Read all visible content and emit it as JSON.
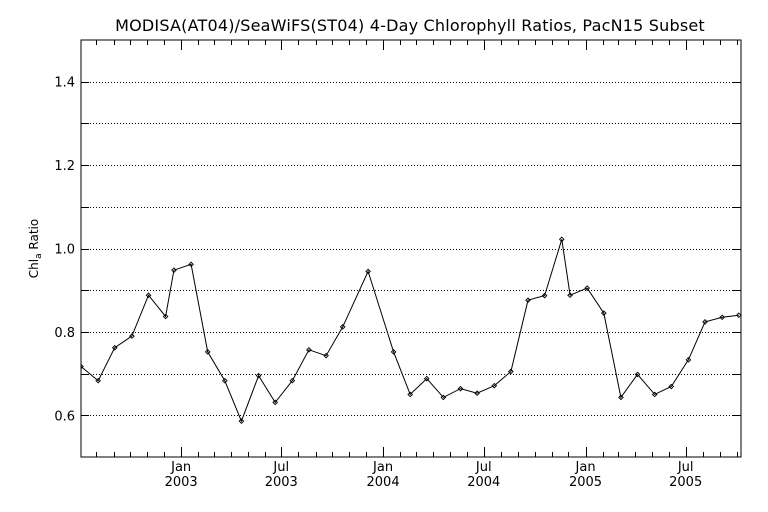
{
  "chart_data": {
    "type": "line",
    "title": "MODISA(AT04)/SeaWiFS(ST04) 4-Day Chlorophyll Ratios, PacN15 Subset",
    "ylabel_main": "Chl",
    "ylabel_sub": "a",
    "ylabel_rest": " Ratio",
    "ylim": [
      0.5,
      1.5
    ],
    "y_ticks": [
      0.6,
      0.8,
      1.0,
      1.2,
      1.4
    ],
    "y_tick_labels": [
      "0.6",
      "0.8",
      "1.0",
      "1.2",
      "1.4"
    ],
    "y_gridlines": [
      0.6,
      0.7,
      0.8,
      0.9,
      1.0,
      1.1,
      1.2,
      1.3,
      1.4
    ],
    "grid": "dotted horizontal",
    "x_start": "2002-07-04",
    "x_end": "2005-10-09",
    "x_ticks": [
      {
        "date": "2003-01-01",
        "month": "Jan",
        "year": "2003"
      },
      {
        "date": "2003-07-01",
        "month": "Jul",
        "year": "2003"
      },
      {
        "date": "2004-01-01",
        "month": "Jan",
        "year": "2004"
      },
      {
        "date": "2004-07-01",
        "month": "Jul",
        "year": "2004"
      },
      {
        "date": "2005-01-01",
        "month": "Jan",
        "year": "2005"
      },
      {
        "date": "2005-07-01",
        "month": "Jul",
        "year": "2005"
      }
    ],
    "series": [
      {
        "points": [
          {
            "x": "2002-07-04",
            "y": 0.717
          },
          {
            "x": "2002-08-04",
            "y": 0.683
          },
          {
            "x": "2002-09-03",
            "y": 0.762
          },
          {
            "x": "2002-10-04",
            "y": 0.79
          },
          {
            "x": "2002-11-03",
            "y": 0.888
          },
          {
            "x": "2002-12-04",
            "y": 0.837
          },
          {
            "x": "2002-12-19",
            "y": 0.948
          },
          {
            "x": "2003-01-19",
            "y": 0.962
          },
          {
            "x": "2003-02-18",
            "y": 0.752
          },
          {
            "x": "2003-03-21",
            "y": 0.683
          },
          {
            "x": "2003-04-20",
            "y": 0.586
          },
          {
            "x": "2003-05-21",
            "y": 0.695
          },
          {
            "x": "2003-06-20",
            "y": 0.631
          },
          {
            "x": "2003-07-21",
            "y": 0.683
          },
          {
            "x": "2003-08-20",
            "y": 0.757
          },
          {
            "x": "2003-09-20",
            "y": 0.743
          },
          {
            "x": "2003-10-20",
            "y": 0.812
          },
          {
            "x": "2003-12-05",
            "y": 0.945
          },
          {
            "x": "2004-01-20",
            "y": 0.752
          },
          {
            "x": "2004-02-19",
            "y": 0.65
          },
          {
            "x": "2004-03-20",
            "y": 0.688
          },
          {
            "x": "2004-04-19",
            "y": 0.643
          },
          {
            "x": "2004-05-20",
            "y": 0.664
          },
          {
            "x": "2004-06-19",
            "y": 0.653
          },
          {
            "x": "2004-07-20",
            "y": 0.671
          },
          {
            "x": "2004-08-19",
            "y": 0.705
          },
          {
            "x": "2004-09-19",
            "y": 0.876
          },
          {
            "x": "2004-10-19",
            "y": 0.887
          },
          {
            "x": "2004-11-19",
            "y": 1.022
          },
          {
            "x": "2004-12-04",
            "y": 0.888
          },
          {
            "x": "2005-01-04",
            "y": 0.905
          },
          {
            "x": "2005-02-03",
            "y": 0.845
          },
          {
            "x": "2005-03-06",
            "y": 0.643
          },
          {
            "x": "2005-04-05",
            "y": 0.698
          },
          {
            "x": "2005-05-06",
            "y": 0.65
          },
          {
            "x": "2005-06-05",
            "y": 0.669
          },
          {
            "x": "2005-07-06",
            "y": 0.733
          },
          {
            "x": "2005-08-05",
            "y": 0.824
          },
          {
            "x": "2005-09-05",
            "y": 0.835
          },
          {
            "x": "2005-10-05",
            "y": 0.84
          }
        ]
      }
    ]
  }
}
